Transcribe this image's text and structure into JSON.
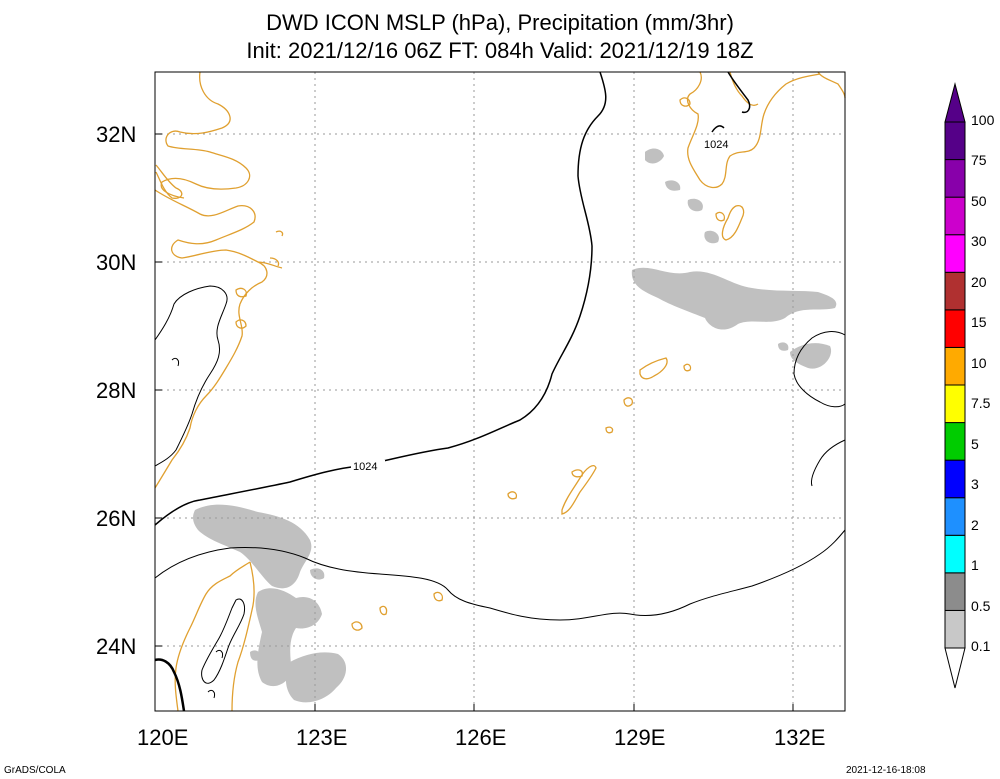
{
  "title": {
    "line1": "DWD ICON MSLP (hPa), Precipitation (mm/3hr)",
    "line2": "Init: 2021/12/16 06Z  FT: 084h  Valid: 2021/12/19 18Z"
  },
  "map": {
    "lon_range": [
      120,
      133.5
    ],
    "lat_range": [
      23,
      33
    ],
    "x_ticks": [
      "120E",
      "123E",
      "126E",
      "129E",
      "132E"
    ],
    "x_tick_values": [
      120,
      123,
      126,
      129,
      132
    ],
    "y_ticks": [
      "24N",
      "26N",
      "28N",
      "30N",
      "32N"
    ],
    "y_tick_values": [
      24,
      26,
      28,
      30,
      32
    ],
    "gridlines": true,
    "coastline_color": "#e0a030",
    "isobar_color": "#000000",
    "precip_shade_color": "#c0c0c0"
  },
  "isobars": {
    "label_1024_a": "1024",
    "label_1024_b": "1024"
  },
  "colorbar": {
    "labels": [
      "0.1",
      "0.5",
      "1",
      "2",
      "3",
      "5",
      "7.5",
      "10",
      "15",
      "20",
      "30",
      "50",
      "75",
      "100"
    ],
    "colors": [
      "#c8c8c8",
      "#8c8c8c",
      "#00ffff",
      "#1e90ff",
      "#0000ff",
      "#00cc00",
      "#ffff00",
      "#ffaa00",
      "#ff0000",
      "#b03030",
      "#ff00ff",
      "#cc00cc",
      "#8800aa",
      "#550088"
    ]
  },
  "footer": {
    "left": "GrADS/COLA",
    "right": "2021-12-16-18:08"
  }
}
